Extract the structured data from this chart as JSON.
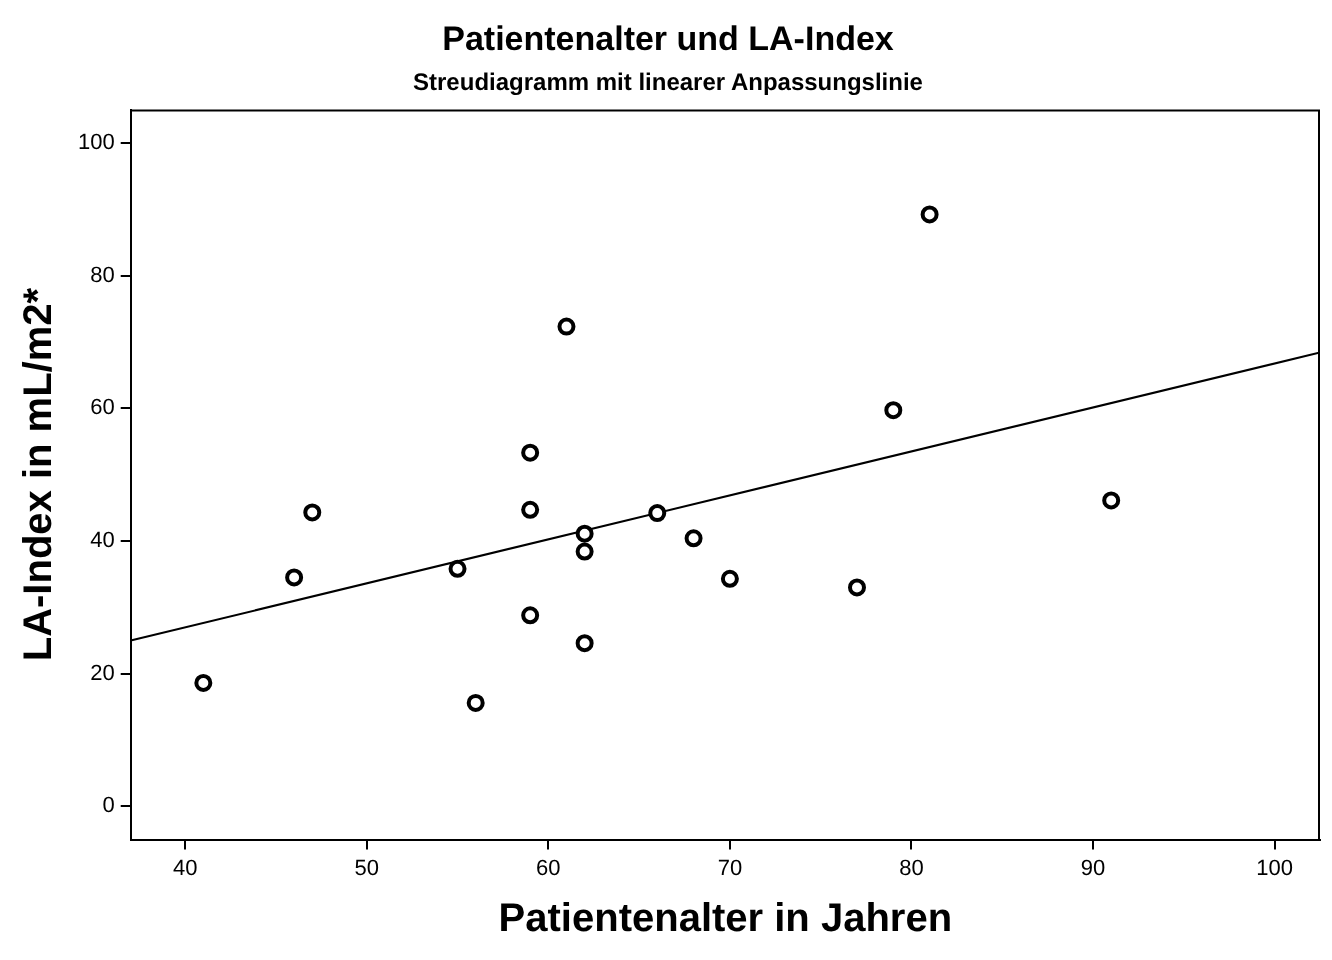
{
  "chart_data": {
    "type": "scatter",
    "title": "Patientenalter und LA-Index",
    "subtitle": "Streudiagramm mit linearer Anpassungslinie",
    "xlabel": "Patientenalter in Jahren",
    "ylabel": "LA-Index in mL/m2*",
    "x": [
      41,
      46,
      47,
      55,
      56,
      59,
      59,
      59,
      61,
      62,
      62,
      62,
      66,
      68,
      70,
      77,
      79,
      81,
      91
    ],
    "series": [
      {
        "color": "#000000",
        "marker": "circle",
        "values": [
          18.6,
          34.5,
          44.3,
          35.8,
          15.6,
          53.3,
          44.7,
          28.8,
          72.3,
          41.1,
          38.4,
          24.6,
          44.2,
          40.4,
          34.3,
          33,
          59.7,
          89.2,
          46.1
        ]
      },
      {
        "type": "line",
        "color": "#000000",
        "marker": "none",
        "x": [
          37,
          102.5
        ],
        "values": [
          25,
          68.4
        ]
      }
    ],
    "xlim": [
      37,
      102.5
    ],
    "ylim": [
      -5,
      105
    ],
    "xticks": [
      40,
      50,
      60,
      70,
      80,
      90,
      100
    ],
    "yticks": [
      0,
      20,
      40,
      60,
      80,
      100
    ],
    "grid": false,
    "legend": false
  }
}
